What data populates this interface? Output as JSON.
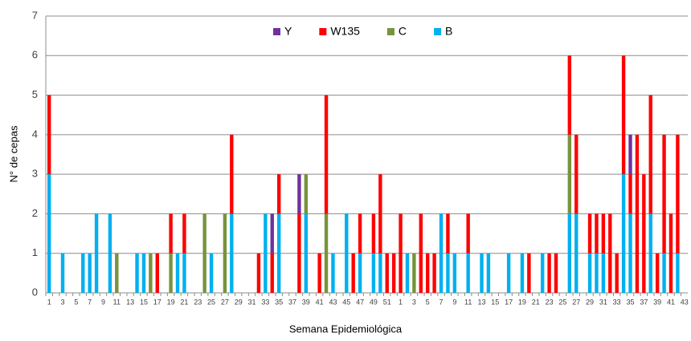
{
  "chart_data": {
    "type": "stacked-bar",
    "xlabel": "Semana Epidemiológica",
    "ylabel": "N° de cepas",
    "categories": [
      "1",
      null,
      "3",
      null,
      "5",
      null,
      "7",
      null,
      "9",
      null,
      "11",
      null,
      "13",
      null,
      "15",
      null,
      "17",
      null,
      "19",
      null,
      "21",
      null,
      "23",
      null,
      "25",
      null,
      "27",
      null,
      "29",
      null,
      "31",
      null,
      "33",
      null,
      "35",
      null,
      "37",
      null,
      "39",
      null,
      "41",
      null,
      "43",
      null,
      "45",
      null,
      "47",
      null,
      "49",
      null,
      "51",
      null,
      "1",
      null,
      "3",
      null,
      "5",
      null,
      "7",
      null,
      "9",
      null,
      "11",
      null,
      "13",
      null,
      "15",
      null,
      "17",
      null,
      "19",
      null,
      "21",
      null,
      "23",
      null,
      "25",
      null,
      "27",
      null,
      "29",
      null,
      "31",
      null,
      "33",
      null,
      "35",
      null,
      "37",
      null,
      "39",
      null,
      "41",
      null,
      "43"
    ],
    "series": [
      {
        "name": "B",
        "color": "#00b0f0",
        "values": [
          3,
          0,
          1,
          0,
          0,
          1,
          1,
          2,
          0,
          2,
          0,
          0,
          0,
          1,
          1,
          0,
          0,
          0,
          0,
          1,
          1,
          0,
          0,
          0,
          1,
          0,
          0,
          2,
          0,
          0,
          0,
          0,
          2,
          0,
          2,
          0,
          0,
          0,
          2,
          0,
          0,
          0,
          1,
          0,
          2,
          0,
          1,
          0,
          1,
          1,
          0,
          0,
          0,
          1,
          0,
          0,
          0,
          0,
          2,
          1,
          1,
          0,
          1,
          0,
          1,
          1,
          0,
          0,
          1,
          0,
          1,
          0,
          0,
          1,
          0,
          0,
          0,
          2,
          2,
          0,
          1,
          1,
          1,
          0,
          0,
          3,
          2,
          0,
          0,
          2,
          0,
          1,
          0,
          1,
          0
        ]
      },
      {
        "name": "C",
        "color": "#77933c",
        "values": [
          0,
          0,
          0,
          0,
          0,
          0,
          0,
          0,
          0,
          0,
          1,
          0,
          0,
          0,
          0,
          1,
          0,
          0,
          1,
          0,
          0,
          0,
          0,
          2,
          0,
          0,
          2,
          0,
          0,
          0,
          0,
          0,
          0,
          0,
          0,
          0,
          0,
          0,
          1,
          0,
          0,
          2,
          0,
          0,
          0,
          0,
          0,
          0,
          0,
          0,
          0,
          0,
          0,
          0,
          1,
          0,
          0,
          0,
          0,
          0,
          0,
          0,
          0,
          0,
          0,
          0,
          0,
          0,
          0,
          0,
          0,
          0,
          0,
          0,
          0,
          0,
          0,
          2,
          0,
          0,
          0,
          0,
          0,
          0,
          0,
          0,
          0,
          0,
          0,
          0,
          0,
          0,
          0,
          0,
          0
        ]
      },
      {
        "name": "W135",
        "color": "#ff0000",
        "values": [
          2,
          0,
          0,
          0,
          0,
          0,
          0,
          0,
          0,
          0,
          0,
          0,
          0,
          0,
          0,
          0,
          1,
          0,
          1,
          0,
          1,
          0,
          0,
          0,
          0,
          0,
          0,
          2,
          0,
          0,
          0,
          1,
          0,
          1,
          1,
          0,
          0,
          2,
          0,
          0,
          1,
          3,
          0,
          0,
          0,
          1,
          1,
          0,
          1,
          2,
          1,
          1,
          2,
          0,
          0,
          2,
          1,
          1,
          0,
          1,
          0,
          0,
          1,
          0,
          0,
          0,
          0,
          0,
          0,
          0,
          0,
          1,
          0,
          0,
          1,
          1,
          0,
          2,
          2,
          0,
          1,
          1,
          1,
          2,
          1,
          3,
          1,
          4,
          3,
          3,
          1,
          3,
          2,
          3,
          0
        ]
      },
      {
        "name": "Y",
        "color": "#7030a0",
        "values": [
          0,
          0,
          0,
          0,
          0,
          0,
          0,
          0,
          0,
          0,
          0,
          0,
          0,
          0,
          0,
          0,
          0,
          0,
          0,
          0,
          0,
          0,
          0,
          0,
          0,
          0,
          0,
          0,
          0,
          0,
          0,
          0,
          0,
          1,
          0,
          0,
          0,
          1,
          0,
          0,
          0,
          0,
          0,
          0,
          0,
          0,
          0,
          0,
          0,
          0,
          0,
          0,
          0,
          0,
          0,
          0,
          0,
          0,
          0,
          0,
          0,
          0,
          0,
          0,
          0,
          0,
          0,
          0,
          0,
          0,
          0,
          0,
          0,
          0,
          0,
          0,
          0,
          0,
          0,
          0,
          0,
          0,
          0,
          0,
          0,
          0,
          1,
          0,
          0,
          0,
          0,
          0,
          0,
          0,
          0
        ]
      }
    ],
    "legend_order": [
      "Y",
      "W135",
      "C",
      "B"
    ],
    "ylim": [
      0,
      7
    ],
    "yticks": [
      0,
      1,
      2,
      3,
      4,
      5,
      6,
      7
    ],
    "grid": true,
    "legend": "top"
  }
}
